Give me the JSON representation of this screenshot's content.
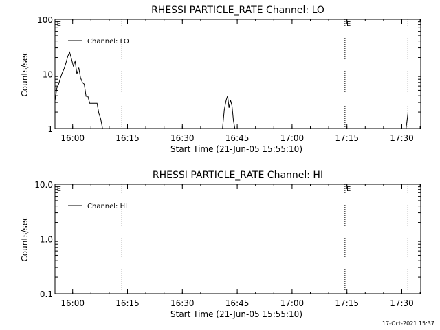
{
  "footer": {
    "timestamp": "17-Oct-2021 15:37"
  },
  "chart_data": [
    {
      "type": "line",
      "title": "RHESSI PARTICLE_RATE Channel: LO",
      "xlabel": "Start Time (21-Jun-05 15:55:10)",
      "ylabel": "Counts/sec",
      "yscale": "log",
      "ylim": [
        1,
        100
      ],
      "xlim_minutes": [
        0,
        100
      ],
      "xtick_labels": [
        "16:00",
        "16:15",
        "16:30",
        "16:45",
        "17:00",
        "17:15",
        "17:30"
      ],
      "xtick_minutes": [
        4.83,
        19.83,
        34.83,
        49.83,
        64.83,
        79.83,
        94.83
      ],
      "ytick_labels": [
        "1",
        "10",
        "100"
      ],
      "ytick_values": [
        1,
        10,
        100
      ],
      "legend": {
        "label": "Channel: LO",
        "placement": "top-left"
      },
      "event_lines_minutes": [
        18.3,
        79.3,
        96.5
      ],
      "event_markers": [
        {
          "label": "E",
          "minute": 0.3
        },
        {
          "label": "E",
          "minute": 79.5
        }
      ],
      "grid": false,
      "series": [
        {
          "name": "Channel: LO",
          "points": [
            [
              0.0,
              3.2
            ],
            [
              0.5,
              5.5
            ],
            [
              1.0,
              6.5
            ],
            [
              1.5,
              8.5
            ],
            [
              2.0,
              10.5
            ],
            [
              2.5,
              12.5
            ],
            [
              3.0,
              16
            ],
            [
              3.5,
              21
            ],
            [
              4.0,
              25
            ],
            [
              4.5,
              19
            ],
            [
              5.0,
              14
            ],
            [
              5.5,
              17
            ],
            [
              6.0,
              10
            ],
            [
              6.5,
              13
            ],
            [
              7.0,
              8.5
            ],
            [
              7.5,
              7
            ],
            [
              8.0,
              6.5
            ],
            [
              8.5,
              3.9
            ],
            [
              9.0,
              3.9
            ],
            [
              9.5,
              2.9
            ],
            [
              10.5,
              2.9
            ],
            [
              11.5,
              2.9
            ],
            [
              12.0,
              1.9
            ],
            [
              12.5,
              1.5
            ],
            [
              13.0,
              1.0
            ],
            [
              45.8,
              1.0
            ],
            [
              46.3,
              2.2
            ],
            [
              46.8,
              3.3
            ],
            [
              47.2,
              4.0
            ],
            [
              47.6,
              2.4
            ],
            [
              48.0,
              3.3
            ],
            [
              48.4,
              2.6
            ],
            [
              48.8,
              1.4
            ],
            [
              49.2,
              1.0
            ],
            [
              96.0,
              1.0
            ],
            [
              96.5,
              1.9
            ]
          ]
        }
      ]
    },
    {
      "type": "line",
      "title": "RHESSI PARTICLE_RATE Channel: HI",
      "xlabel": "Start Time (21-Jun-05 15:55:10)",
      "ylabel": "Counts/sec",
      "yscale": "log",
      "ylim": [
        0.1,
        10
      ],
      "xlim_minutes": [
        0,
        100
      ],
      "xtick_labels": [
        "16:00",
        "16:15",
        "16:30",
        "16:45",
        "17:00",
        "17:15",
        "17:30"
      ],
      "xtick_minutes": [
        4.83,
        19.83,
        34.83,
        49.83,
        64.83,
        79.83,
        94.83
      ],
      "ytick_labels": [
        "0.1",
        "1.0",
        "10.0"
      ],
      "ytick_values": [
        0.1,
        1,
        10
      ],
      "legend": {
        "label": "Channel: HI",
        "placement": "top-left"
      },
      "event_lines_minutes": [
        18.3,
        79.3,
        96.5
      ],
      "event_markers": [
        {
          "label": "E",
          "minute": 0.3
        },
        {
          "label": "E",
          "minute": 79.5
        }
      ],
      "grid": false,
      "series": [
        {
          "name": "Channel: HI",
          "points": []
        }
      ]
    }
  ]
}
